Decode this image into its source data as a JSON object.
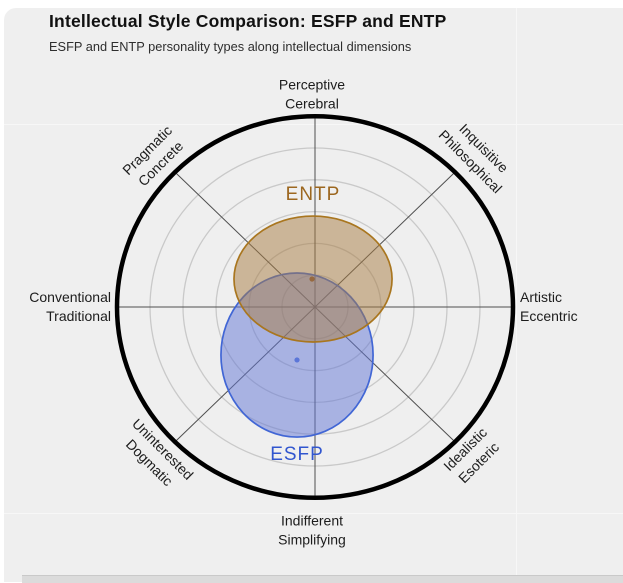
{
  "header": {
    "title": "Intellectual Style Comparison: ESFP and ENTP",
    "subtitle": "ESFP and ENTP personality types along intellectual dimensions"
  },
  "chart_data": {
    "type": "radar-ellipse",
    "title": "Intellectual Style Comparison: ESFP and ENTP",
    "axes": [
      {
        "id": "top",
        "line1": "Perceptive",
        "line2": "Cerebral"
      },
      {
        "id": "top-right",
        "line1": "Inquisitive",
        "line2": "Philosophical"
      },
      {
        "id": "right",
        "line1": "Artistic",
        "line2": "Eccentric"
      },
      {
        "id": "bottom-right",
        "line1": "Idealistic",
        "line2": "Esoteric"
      },
      {
        "id": "bottom",
        "line1": "Indifferent",
        "line2": "Simplifying"
      },
      {
        "id": "bottom-left",
        "line1": "Uninterested",
        "line2": "Dogmatic"
      },
      {
        "id": "left",
        "line1": "Conventional",
        "line2": "Traditional"
      },
      {
        "id": "top-left",
        "line1": "Pragmatic",
        "line2": "Concrete"
      }
    ],
    "grid_on": true,
    "grid_levels": [
      0.2,
      0.4,
      0.6,
      0.8,
      1.0
    ],
    "outer_level": 1.2,
    "series": [
      {
        "name": "ENTP",
        "center_x": -0.012,
        "center_y": 0.176,
        "rx": 0.479,
        "ry": 0.396,
        "dot_x": -0.018,
        "dot_y": 0.176,
        "stroke": "#a9761f",
        "fill": "rgba(167,123,65,0.5)",
        "label_color": "#9c671f",
        "dot_color": "#97693f"
      },
      {
        "name": "ESFP",
        "center_x": -0.109,
        "center_y": -0.302,
        "rx": 0.461,
        "ry": 0.516,
        "dot_x": -0.109,
        "dot_y": -0.333,
        "stroke": "#4166d5",
        "fill": "rgba(97,117,213,0.5)",
        "label_color": "#3156cf",
        "dot_color": "#5b76d8"
      }
    ],
    "colors": {
      "outer_ring": "#000000",
      "gridline": "#c9c9c9",
      "spoke": "#4f4f4f",
      "background": "#efefef"
    }
  }
}
